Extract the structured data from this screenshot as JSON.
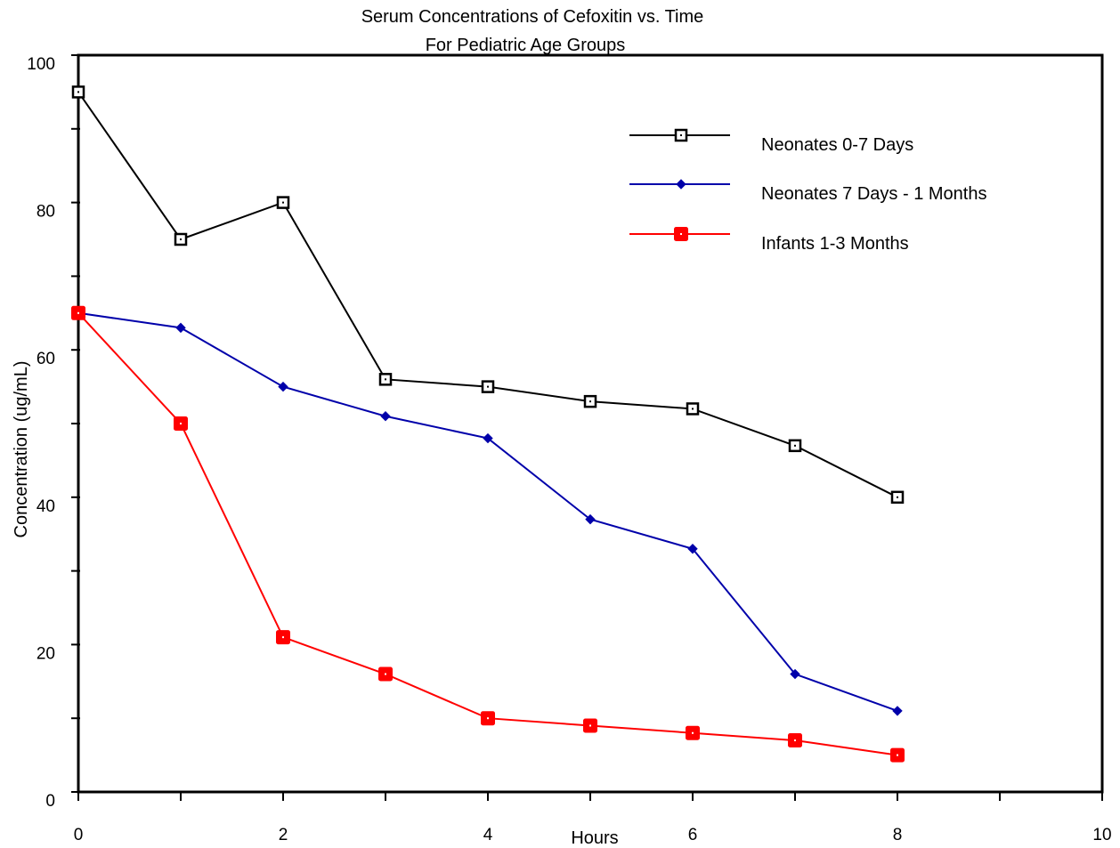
{
  "chart_data": {
    "type": "line",
    "title": "Serum Concentrations of Cefoxitin vs. Time",
    "subtitle": "For Pediatric Age Groups",
    "xlabel": "Hours",
    "ylabel": "Concentration (ug/mL)",
    "xlim": [
      0,
      10
    ],
    "ylim": [
      0,
      100
    ],
    "xticks": [
      "0",
      "2",
      "4",
      "6",
      "8",
      "10"
    ],
    "yticks": [
      "0",
      "20",
      "40",
      "60",
      "80",
      "100"
    ],
    "x": [
      0,
      1,
      2,
      3,
      4,
      5,
      6,
      7,
      8
    ],
    "grid": false,
    "legend_position": "top-right",
    "series": [
      {
        "name": "Neonates 0-7 Days",
        "color": "#000000",
        "marker": "open-square",
        "values": [
          95,
          75,
          80,
          56,
          55,
          53,
          52,
          47,
          40
        ]
      },
      {
        "name": "Neonates 7 Days - 1 Months",
        "color": "#0000aa",
        "marker": "diamond",
        "values": [
          65,
          63,
          55,
          51,
          48,
          37,
          33,
          16,
          11
        ]
      },
      {
        "name": "Infants 1-3 Months",
        "color": "#ff0000",
        "marker": "filled-square",
        "values": [
          65,
          50,
          21,
          16,
          10,
          9,
          8,
          7,
          5
        ]
      }
    ]
  }
}
